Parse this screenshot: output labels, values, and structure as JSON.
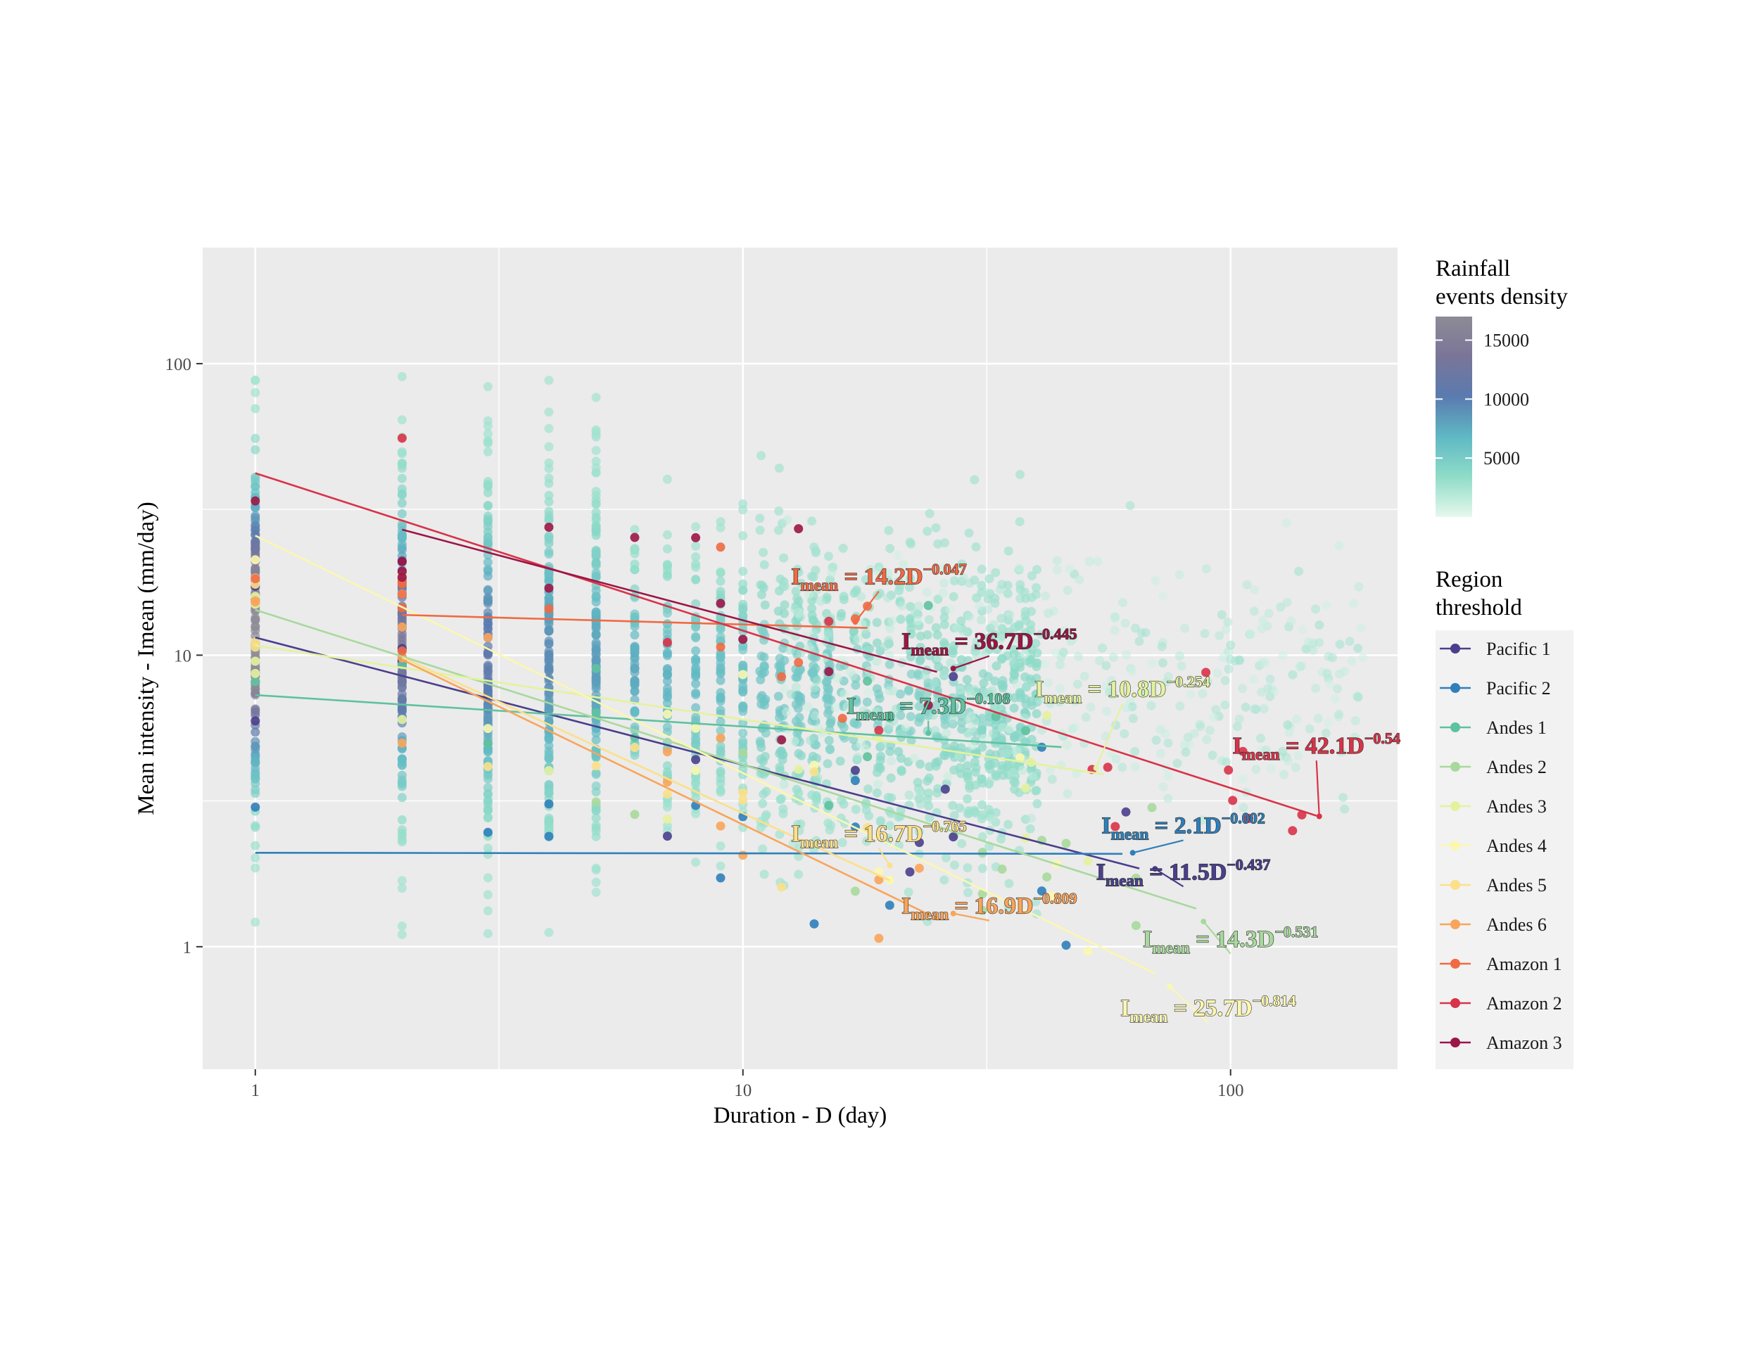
{
  "chart_data": {
    "type": "scatter",
    "title": "",
    "xlabel": "Duration - D (day)",
    "ylabel": "Mean intensity - Imean (mm/day)",
    "xscale": "log",
    "yscale": "log",
    "xlim": [
      0.78,
      220
    ],
    "ylim": [
      0.38,
      250
    ],
    "x_ticks": [
      "1",
      "10",
      "100"
    ],
    "y_ticks": [
      "1",
      "10",
      "100"
    ],
    "grid": true,
    "panel_background": "#ebebeb",
    "legend_position": "right",
    "density_legend": {
      "title_line1": "Rainfall",
      "title_line2": "events density",
      "ticks": [
        "15000",
        "10000",
        "5000"
      ],
      "tick_values": [
        15000,
        10000,
        5000
      ],
      "range": [
        0,
        17000
      ],
      "colors": [
        "#e6f8ec",
        "#8fdcc8",
        "#5fb8c4",
        "#5a7bb0",
        "#7a7598",
        "#8d8b96"
      ]
    },
    "region_legend": {
      "title_line1": "Region",
      "title_line2": "threshold"
    },
    "series": [
      {
        "name": "Pacific 1",
        "color": "#4a3f8c",
        "a": 11.5,
        "b": -0.437,
        "x_range": [
          1,
          65
        ],
        "label_a": "11.5",
        "label_b": "−0.437",
        "label_at": [
          80,
          1.7
        ],
        "arrow_end": [
          70,
          1.85
        ]
      },
      {
        "name": "Pacific 2",
        "color": "#2f7fba",
        "a": 2.1,
        "b": -0.002,
        "x_range": [
          1,
          60
        ],
        "label_a": "2.1",
        "label_b": "−0.002",
        "label_at": [
          80,
          2.45
        ],
        "arrow_end": [
          63,
          2.1
        ]
      },
      {
        "name": "Andes 1",
        "color": "#5fc29e",
        "a": 7.3,
        "b": -0.108,
        "x_range": [
          1,
          45
        ],
        "label_a": "7.3",
        "label_b": "−0.108",
        "label_at": [
          24,
          6.3
        ],
        "arrow_end": [
          24,
          5.4
        ]
      },
      {
        "name": "Andes 2",
        "color": "#a8d99c",
        "a": 14.3,
        "b": -0.531,
        "x_range": [
          1,
          85
        ],
        "label_a": "14.3",
        "label_b": "−0.531",
        "label_at": [
          100,
          1.0
        ],
        "arrow_end": [
          88,
          1.22
        ]
      },
      {
        "name": "Andes 3",
        "color": "#e4f29e",
        "a": 10.8,
        "b": -0.254,
        "x_range": [
          1,
          55
        ],
        "label_a": "10.8",
        "label_b": "−0.254",
        "label_at": [
          60,
          7.2
        ],
        "arrow_end": [
          53,
          4.1
        ]
      },
      {
        "name": "Andes 4",
        "color": "#fbf7b0",
        "a": 25.7,
        "b": -0.814,
        "x_range": [
          1,
          70
        ],
        "label_a": "25.7",
        "label_b": "−0.814",
        "label_at": [
          90,
          0.58
        ],
        "arrow_end": [
          75,
          0.73
        ]
      },
      {
        "name": "Andes 5",
        "color": "#fbe08a",
        "a": 16.7,
        "b": -0.765,
        "x_range": [
          2,
          20
        ],
        "label_a": "16.7",
        "label_b": "−0.765",
        "label_at": [
          19,
          2.3
        ],
        "arrow_end": [
          20,
          1.9
        ]
      },
      {
        "name": "Andes 6",
        "color": "#f9a55a",
        "a": 16.9,
        "b": -0.809,
        "x_range": [
          2,
          25
        ],
        "label_a": "16.9",
        "label_b": "−0.809",
        "label_at": [
          32,
          1.3
        ],
        "arrow_end": [
          27,
          1.3
        ]
      },
      {
        "name": "Amazon 1",
        "color": "#f06a43",
        "a": 14.2,
        "b": -0.047,
        "x_range": [
          2,
          18
        ],
        "label_a": "14.2",
        "label_b": "−0.047",
        "label_at": [
          19,
          17.5
        ],
        "arrow_end": [
          17,
          13.0
        ]
      },
      {
        "name": "Amazon 2",
        "color": "#d83348",
        "a": 42.1,
        "b": -0.54,
        "x_range": [
          1,
          150
        ],
        "label_a": "42.1",
        "label_b": "−0.54",
        "label_at": [
          150,
          4.6
        ],
        "arrow_end": [
          152,
          2.8
        ]
      },
      {
        "name": "Amazon 3",
        "color": "#9b1646",
        "a": 36.7,
        "b": -0.445,
        "x_range": [
          2,
          25
        ],
        "label_a": "36.7",
        "label_b": "−0.445",
        "label_at": [
          32,
          10.5
        ],
        "arrow_end": [
          27,
          9.0
        ]
      }
    ],
    "eq_prefix": "I",
    "eq_sub": "mean",
    "eq_mid": " = ",
    "eq_base": "D"
  }
}
